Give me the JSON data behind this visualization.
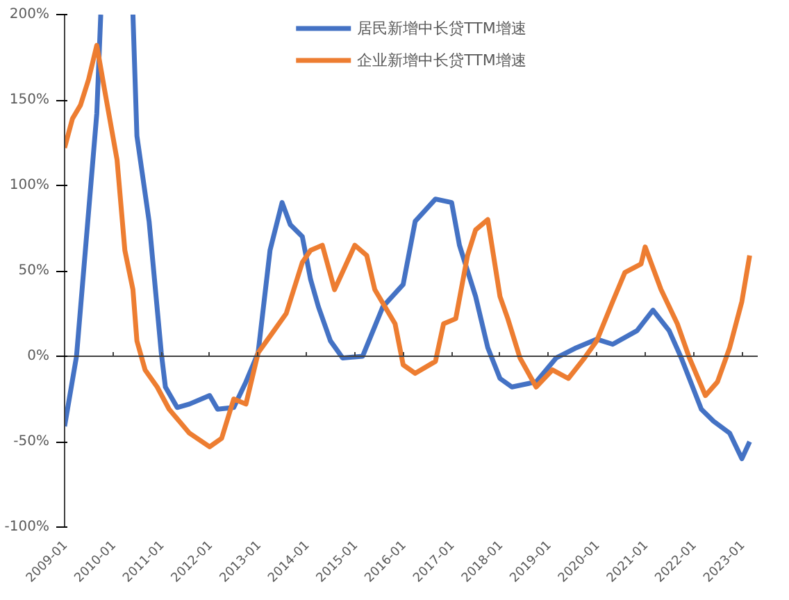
{
  "chart_data": {
    "type": "line",
    "legend": "top",
    "marker": "none",
    "line_style": "solid",
    "xlim": [
      "2009-01",
      "2023-05"
    ],
    "xticks": [
      "2009-01",
      "2010-01",
      "2011-01",
      "2012-01",
      "2013-01",
      "2014-01",
      "2015-01",
      "2016-01",
      "2017-01",
      "2018-01",
      "2019-01",
      "2020-01",
      "2021-01",
      "2022-01",
      "2023-01"
    ],
    "ylim": [
      -100,
      200
    ],
    "yticks": [
      {
        "value": -100,
        "label": "-100%"
      },
      {
        "value": -50,
        "label": "-50%"
      },
      {
        "value": 0,
        "label": "0%"
      },
      {
        "value": 50,
        "label": "50%"
      },
      {
        "value": 100,
        "label": "100%"
      },
      {
        "value": 150,
        "label": "150%"
      },
      {
        "value": 200,
        "label": "200%"
      }
    ],
    "series": [
      {
        "name": "居民新增中长贷TTM增速",
        "color": "#4472c4",
        "x": [
          "2009-01",
          "2009-04",
          "2009-09",
          "2009-10",
          "2010-01",
          "2010-06",
          "2010-07",
          "2010-10",
          "2011-01",
          "2011-02",
          "2011-05",
          "2011-08",
          "2012-01",
          "2012-03",
          "2012-07",
          "2012-10",
          "2013-01",
          "2013-04",
          "2013-07",
          "2013-09",
          "2013-12",
          "2014-02",
          "2014-04",
          "2014-07",
          "2014-10",
          "2015-03",
          "2015-08",
          "2016-01",
          "2016-04",
          "2016-09",
          "2017-01",
          "2017-03",
          "2017-07",
          "2017-10",
          "2018-01",
          "2018-04",
          "2018-10",
          "2019-03",
          "2019-08",
          "2020-01",
          "2020-05",
          "2020-11",
          "2021-03",
          "2021-07",
          "2021-10",
          "2022-03",
          "2022-06",
          "2022-10",
          "2023-01",
          "2023-03"
        ],
        "values": [
          -41,
          0,
          142,
          200,
          null,
          200,
          129,
          79,
          2,
          -18,
          -30,
          -28,
          -23,
          -31,
          -30,
          -15,
          2,
          62,
          90,
          77,
          70,
          45,
          29,
          9,
          -1,
          0,
          29,
          42,
          79,
          92,
          90,
          65,
          35,
          5,
          -13,
          -18,
          -15,
          -1,
          5,
          10,
          7,
          15,
          27,
          15,
          -1,
          -31,
          -38,
          -45,
          -60,
          -50
        ]
      },
      {
        "name": "企业新增中长贷TTM增速",
        "color": "#ed7d31",
        "x": [
          "2009-01",
          "2009-03",
          "2009-05",
          "2009-07",
          "2009-09",
          "2009-11",
          "2010-02",
          "2010-04",
          "2010-06",
          "2010-07",
          "2010-09",
          "2010-12",
          "2011-03",
          "2011-08",
          "2012-01",
          "2012-04",
          "2012-07",
          "2012-10",
          "2013-01",
          "2013-05",
          "2013-08",
          "2013-12",
          "2014-02",
          "2014-05",
          "2014-08",
          "2015-01",
          "2015-04",
          "2015-06",
          "2015-11",
          "2016-01",
          "2016-04",
          "2016-09",
          "2016-11",
          "2017-02",
          "2017-05",
          "2017-07",
          "2017-10",
          "2018-01",
          "2018-03",
          "2018-06",
          "2018-10",
          "2019-02",
          "2019-06",
          "2019-10",
          "2020-01",
          "2020-05",
          "2020-08",
          "2020-12",
          "2021-01",
          "2021-05",
          "2021-09",
          "2021-12",
          "2022-04",
          "2022-07",
          "2022-10",
          "2023-01",
          "2023-03"
        ],
        "values": [
          122,
          139,
          147,
          162,
          182,
          155,
          115,
          62,
          39,
          9,
          -8,
          -18,
          -31,
          -45,
          -53,
          -48,
          -25,
          -28,
          2,
          15,
          25,
          55,
          62,
          65,
          39,
          65,
          59,
          39,
          19,
          -5,
          -10,
          -3,
          19,
          22,
          59,
          74,
          80,
          35,
          22,
          -1,
          -18,
          -8,
          -13,
          -1,
          9,
          32,
          49,
          54,
          64,
          39,
          19,
          -1,
          -23,
          -15,
          5,
          32,
          59
        ]
      }
    ]
  }
}
